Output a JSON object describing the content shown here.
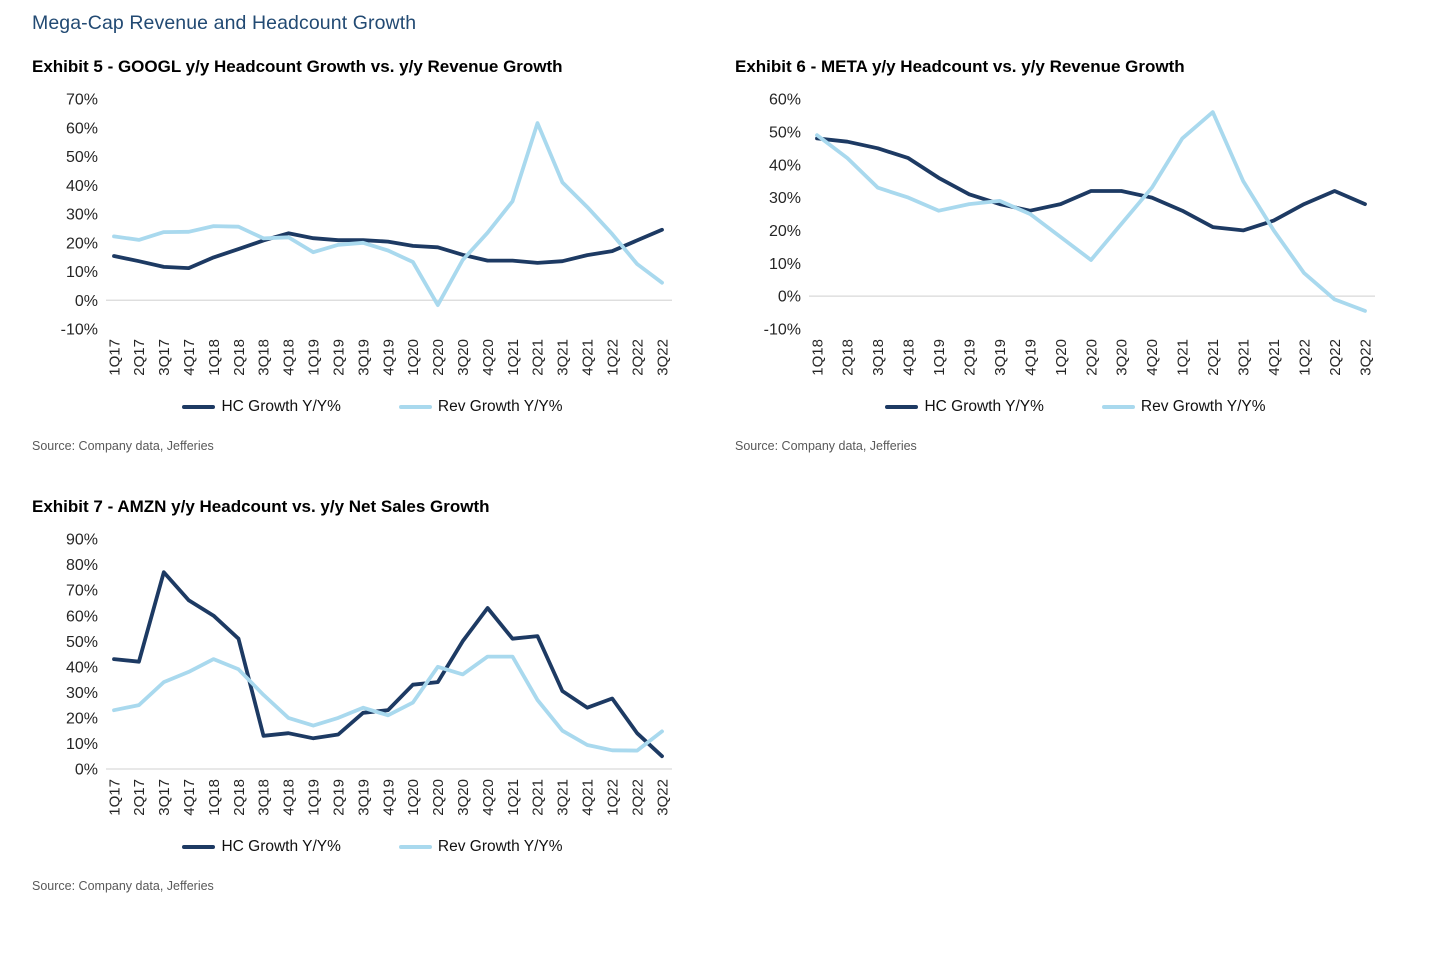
{
  "page": {
    "title": "Mega-Cap Revenue and Headcount Growth"
  },
  "colors": {
    "page_title": "#224a73",
    "hc_line": "#1d3a63",
    "rev_line": "#a9d9ee",
    "zero_gridline": "#d9d9d9",
    "axis_text": "#262626",
    "chart_title": "#000000",
    "source_text": "#595959"
  },
  "chart_data": [
    {
      "type": "line",
      "title": "Exhibit 5 - GOOGL y/y Headcount Growth vs. y/y Revenue Growth",
      "source": "Source: Company data, Jefferies",
      "grid": "zero-line-only",
      "legend_position": "bottom",
      "ylim": [
        -10,
        70
      ],
      "yticks": [
        "70%",
        "60%",
        "50%",
        "40%",
        "30%",
        "20%",
        "10%",
        "0%",
        "-10%"
      ],
      "categories": [
        "1Q17",
        "2Q17",
        "3Q17",
        "4Q17",
        "1Q18",
        "2Q18",
        "3Q18",
        "4Q18",
        "1Q19",
        "2Q19",
        "3Q19",
        "4Q19",
        "1Q20",
        "2Q20",
        "3Q20",
        "4Q20",
        "1Q21",
        "2Q21",
        "3Q21",
        "4Q21",
        "1Q22",
        "2Q22",
        "3Q22"
      ],
      "series": [
        {
          "name": "HC Growth Y/Y%",
          "color": "#1d3a63",
          "values": [
            15.4,
            13.6,
            11.6,
            11.2,
            14.9,
            17.8,
            20.8,
            23.3,
            21.6,
            20.9,
            20.9,
            20.4,
            18.9,
            18.4,
            15.8,
            13.8,
            13.8,
            13.0,
            13.6,
            15.7,
            17.1,
            20.8,
            24.5
          ]
        },
        {
          "name": "Rev Growth Y/Y%",
          "color": "#a9d9ee",
          "values": [
            22.2,
            21.0,
            23.7,
            23.8,
            25.8,
            25.6,
            21.5,
            21.9,
            16.7,
            19.3,
            20.0,
            17.3,
            13.3,
            -1.7,
            14.0,
            23.5,
            34.4,
            61.6,
            41.0,
            32.4,
            23.0,
            12.6,
            6.1
          ]
        }
      ]
    },
    {
      "type": "line",
      "title": "Exhibit 6 - META y/y Headcount vs. y/y Revenue Growth",
      "source": "Source: Company data, Jefferies",
      "grid": "zero-line-only",
      "legend_position": "bottom",
      "ylim": [
        -10,
        60
      ],
      "yticks": [
        "60%",
        "50%",
        "40%",
        "30%",
        "20%",
        "10%",
        "0%",
        "-10%"
      ],
      "categories": [
        "1Q18",
        "2Q18",
        "3Q18",
        "4Q18",
        "1Q19",
        "2Q19",
        "3Q19",
        "4Q19",
        "1Q20",
        "2Q20",
        "3Q20",
        "4Q20",
        "1Q21",
        "2Q21",
        "3Q21",
        "4Q21",
        "1Q22",
        "2Q22",
        "3Q22"
      ],
      "series": [
        {
          "name": "HC Growth Y/Y%",
          "color": "#1d3a63",
          "values": [
            48,
            47,
            45,
            42,
            36,
            31,
            28,
            26,
            28,
            32,
            32,
            30,
            26,
            21,
            20,
            23,
            28,
            32,
            28
          ]
        },
        {
          "name": "Rev Growth Y/Y%",
          "color": "#a9d9ee",
          "values": [
            49,
            42,
            33,
            30,
            26,
            28,
            29,
            25,
            18,
            11,
            22,
            33,
            48,
            56,
            35,
            20,
            7,
            -1,
            -4.5
          ]
        }
      ]
    },
    {
      "type": "line",
      "title": "Exhibit 7 - AMZN y/y Headcount vs. y/y Net Sales Growth",
      "source": "Source: Company data, Jefferies",
      "grid": "zero-line-only",
      "legend_position": "bottom",
      "ylim": [
        0,
        90
      ],
      "yticks": [
        "90%",
        "80%",
        "70%",
        "60%",
        "50%",
        "40%",
        "30%",
        "20%",
        "10%",
        "0%"
      ],
      "categories": [
        "1Q17",
        "2Q17",
        "3Q17",
        "4Q17",
        "1Q18",
        "2Q18",
        "3Q18",
        "4Q18",
        "1Q19",
        "2Q19",
        "3Q19",
        "4Q19",
        "1Q20",
        "2Q20",
        "3Q20",
        "4Q20",
        "1Q21",
        "2Q21",
        "3Q21",
        "4Q21",
        "1Q22",
        "2Q22",
        "3Q22"
      ],
      "series": [
        {
          "name": "HC Growth Y/Y%",
          "color": "#1d3a63",
          "values": [
            43,
            42,
            77,
            66,
            60,
            51,
            13,
            14,
            12,
            13.5,
            22,
            23,
            33,
            34,
            50,
            63,
            51,
            52,
            30.5,
            24,
            27.6,
            14,
            5
          ]
        },
        {
          "name": "Rev Growth Y/Y%",
          "color": "#a9d9ee",
          "values": [
            23,
            25,
            34,
            38,
            43,
            39,
            29,
            20,
            17,
            20,
            24,
            21,
            26,
            40,
            37,
            44,
            44,
            27,
            15,
            9.4,
            7.3,
            7.2,
            14.7
          ]
        }
      ]
    }
  ]
}
